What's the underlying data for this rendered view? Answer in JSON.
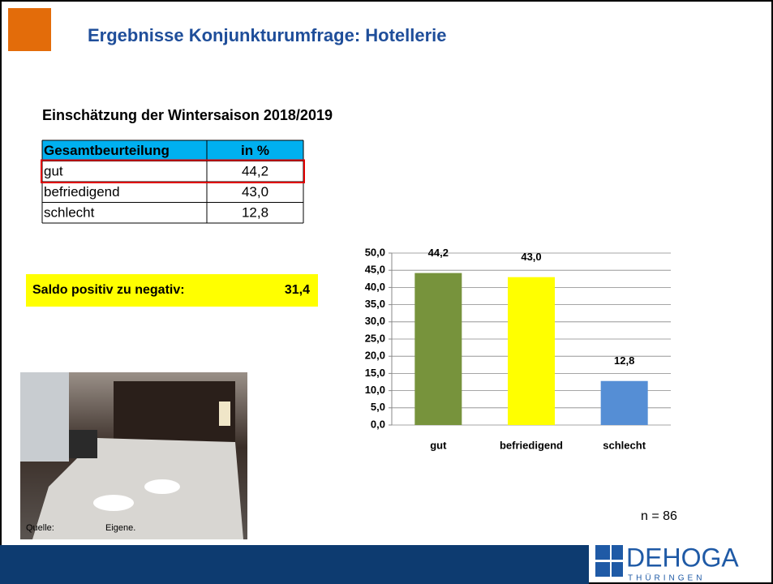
{
  "header": {
    "title": "Ergebnisse Konjunkturumfrage: Hotellerie"
  },
  "subtitle": "Einschätzung der Wintersaison 2018/2019",
  "table": {
    "columns": [
      "Gesamtbeurteilung",
      "in %"
    ],
    "rows": [
      [
        "gut",
        "44,2"
      ],
      [
        "befriedigend",
        "43,0"
      ],
      [
        "schlecht",
        "12,8"
      ]
    ]
  },
  "saldo": {
    "label": "Saldo positiv zu negativ:",
    "value": "31,4"
  },
  "photo": {
    "caption": [
      "Quelle:",
      "Eigene."
    ]
  },
  "sample": "n = 86",
  "logo": {
    "name": "DEHOGA",
    "region": "THÜRINGEN"
  },
  "chart_data": {
    "type": "bar",
    "categories": [
      "gut",
      "befriedigend",
      "schlecht"
    ],
    "values": [
      44.2,
      43.0,
      12.8
    ],
    "value_labels": [
      "44,2",
      "43,0",
      "12,8"
    ],
    "colors": [
      "#77933c",
      "#ffff00",
      "#558ed5"
    ],
    "ylim": [
      0,
      50
    ],
    "yticks": [
      {
        "value": 0,
        "label": "0,0"
      },
      {
        "value": 5,
        "label": "5,0"
      },
      {
        "value": 10,
        "label": "10,0"
      },
      {
        "value": 15,
        "label": "15,0"
      },
      {
        "value": 20,
        "label": "20,0"
      },
      {
        "value": 25,
        "label": "25,0"
      },
      {
        "value": 30,
        "label": "30,0"
      },
      {
        "value": 35,
        "label": "35,0"
      },
      {
        "value": 40,
        "label": "40,0"
      },
      {
        "value": 45,
        "label": "45,0"
      },
      {
        "value": 50,
        "label": "50,0"
      }
    ],
    "grid": true
  }
}
